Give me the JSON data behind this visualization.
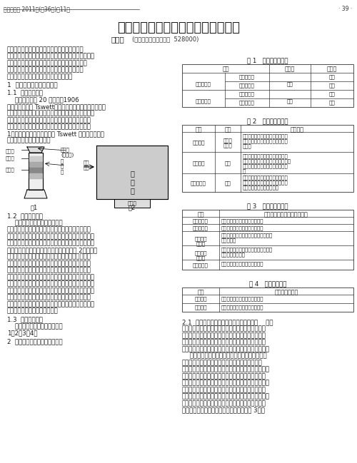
{
  "title": "高中生物学实验中涉及的两种色谱法",
  "header": "生物学教学 2011年(第36卷)第11期",
  "page_num": "· 39 ·",
  "author": "黄广慧",
  "author_affil": "(广东省佛山市第一中学  528000)",
  "intro_text": [
    "色谱法也称层析法，是一种对混合物中各组分进",
    "行分离的方法，在分析化学、有机化学、生物化学等领",
    "域有着非常广泛的应用。高中生物学中叶绻体色素",
    "的分离和直红蛋白的分离这两个实验分别采用了",
    "不同的色谱法，本文对此进行比较分析。"
  ],
  "sec1_title": "1  色谱法的一般原理和分类",
  "sec11_text": [
    "色谱法起源于 20 世纪初。1906",
    "年俄国植物学家 Tswett（茨维特）用碳酸钒填充竖立的",
    "玻璃管，以石油醚洗脱植物色素提取液，经过一段时间",
    "之后，不同色素在碳酸钒柱中以不同的速率流动而实",
    "现分离，由一条色带分散为数条不同颜色的图谱（图",
    "1），由此得名色谱法。由于 Tswett 的开创性工作，",
    "人们尊称他为色谱学之父。"
  ],
  "sec12_text": [
    "色谱法是基于混合物中各组分",
    "在体系中两相的物理化学性能差异而进行分离的。所",
    "谓两相，一是指承载在一定介质（载体）中固定不动、",
    "对样品产生保留作用的基质，叫做固定相；二是指携带",
    "样品组分向前移动的物质，称为流动相（图 2）。色谱",
    "过程的本质是待分离物质分子在固定相和流动相之间",
    "分配平衡的过程；混合物中不同的组分在两相之间的",
    "分配有所差异，这使其随着流动相在固定相上移动的",
    "速度各不相同，最终达到分离的效果。比如，在茨维特",
    "的色素分离实验中，碳酸钒柱作为系统的固定相，对不",
    "同色素的吸附性能有所差别，石油醚作为流动相，带动",
    "着各种色素在色谱柱中以不同的速率移动。被较强吸",
    "附在固定相上的的色素移动慢，反之则快，从而使各色",
    "素得以分离，形成不同的色带。"
  ],
  "table1_title": "表 1   按两相的状态分",
  "table2_title": "表 2   按载体的形式分",
  "table3_title": "表 3   按分离的原理分",
  "table4_title": "表 4   终止的方式分",
  "background_color": "#ffffff",
  "text_color": "#1a1a1a",
  "table_border_color": "#333333"
}
